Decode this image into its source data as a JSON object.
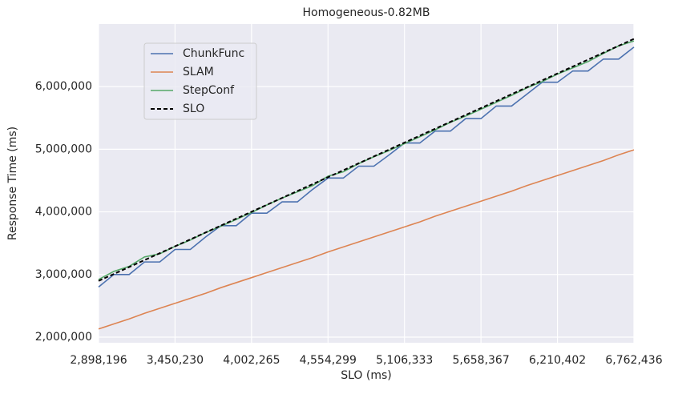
{
  "chart_data": {
    "type": "line",
    "title": "Homogeneous-0.82MB",
    "x_label": "SLO (ms)",
    "y_label": "Response Time (ms)",
    "x": [
      2898196,
      3008603,
      3119010,
      3229417,
      3339823,
      3450230,
      3560637,
      3671044,
      3781451,
      3891858,
      4002265,
      4112672,
      4223078,
      4333485,
      4443892,
      4554299,
      4664706,
      4775113,
      4885520,
      4995926,
      5106333,
      5216740,
      5327147,
      5437554,
      5547961,
      5658367,
      5768774,
      5879181,
      5989588,
      6099995,
      6210402,
      6320809,
      6431215,
      6541622,
      6652029,
      6762436
    ],
    "series": [
      {
        "name": "ChunkFunc",
        "color": "#4c72b0",
        "linestyle": "solid",
        "values": [
          2800000,
          3000000,
          3000000,
          3200000,
          3200000,
          3400000,
          3400000,
          3600000,
          3780000,
          3780000,
          3980000,
          3980000,
          4160000,
          4160000,
          4360000,
          4540000,
          4540000,
          4730000,
          4730000,
          4910000,
          5100000,
          5100000,
          5290000,
          5290000,
          5490000,
          5490000,
          5690000,
          5690000,
          5880000,
          6070000,
          6070000,
          6250000,
          6250000,
          6440000,
          6440000,
          6630000
        ]
      },
      {
        "name": "SLAM",
        "color": "#dd8452",
        "linestyle": "solid",
        "values": [
          2130000,
          2210000,
          2290000,
          2380000,
          2460000,
          2540000,
          2620000,
          2700000,
          2790000,
          2870000,
          2950000,
          3030000,
          3110000,
          3190000,
          3270000,
          3360000,
          3440000,
          3520000,
          3600000,
          3680000,
          3760000,
          3840000,
          3930000,
          4010000,
          4090000,
          4170000,
          4250000,
          4330000,
          4420000,
          4500000,
          4580000,
          4660000,
          4740000,
          4820000,
          4910000,
          4990000
        ]
      },
      {
        "name": "StepConf",
        "color": "#55a868",
        "linestyle": "solid",
        "values": [
          2920000,
          3050000,
          3130000,
          3280000,
          3330000,
          3450000,
          3550000,
          3670000,
          3770000,
          3880000,
          3990000,
          4110000,
          4220000,
          4320000,
          4420000,
          4570000,
          4640000,
          4770000,
          4880000,
          4980000,
          5090000,
          5200000,
          5310000,
          5430000,
          5530000,
          5640000,
          5750000,
          5860000,
          5980000,
          6080000,
          6200000,
          6300000,
          6400000,
          6530000,
          6650000,
          6730000
        ]
      },
      {
        "name": "SLO",
        "color": "#000000",
        "linestyle": "dashed",
        "values": [
          2898196,
          3008603,
          3119010,
          3229417,
          3339823,
          3450230,
          3560637,
          3671044,
          3781451,
          3891858,
          4002265,
          4112672,
          4223078,
          4333485,
          4443892,
          4554299,
          4664706,
          4775113,
          4885520,
          4995926,
          5106333,
          5216740,
          5327147,
          5437554,
          5547961,
          5658367,
          5768774,
          5879181,
          5989588,
          6099995,
          6210402,
          6320809,
          6431215,
          6541622,
          6652029,
          6762436
        ]
      }
    ],
    "xlim": [
      2898196,
      6762436
    ],
    "xticks": [
      {
        "value": 2898196,
        "label": "2,898,196"
      },
      {
        "value": 3450230,
        "label": "3,450,230"
      },
      {
        "value": 4002265,
        "label": "4,002,265"
      },
      {
        "value": 4554299,
        "label": "4,554,299"
      },
      {
        "value": 5106333,
        "label": "5,106,333"
      },
      {
        "value": 5658367,
        "label": "5,658,367"
      },
      {
        "value": 6210402,
        "label": "6,210,402"
      },
      {
        "value": 6762436,
        "label": "6,762,436"
      }
    ],
    "ylim": [
      1910000,
      7000000
    ],
    "yticks": [
      {
        "value": 2000000,
        "label": "2,000,000"
      },
      {
        "value": 3000000,
        "label": "3,000,000"
      },
      {
        "value": 4000000,
        "label": "4,000,000"
      },
      {
        "value": 5000000,
        "label": "5,000,000"
      },
      {
        "value": 6000000,
        "label": "6,000,000"
      }
    ],
    "grid": true,
    "legend_position": "upper-left"
  }
}
